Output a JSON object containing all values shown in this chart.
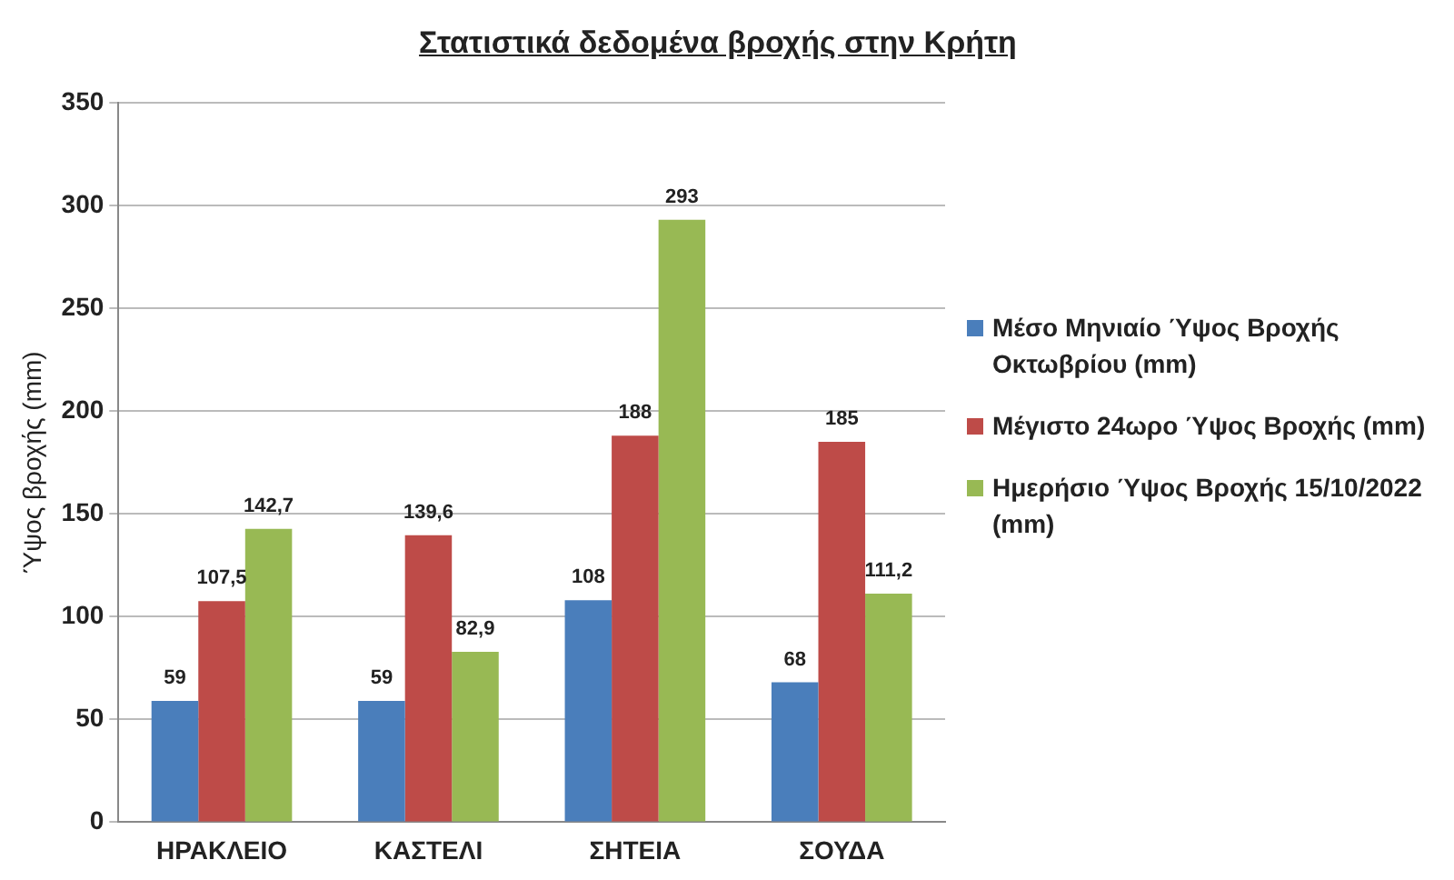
{
  "chart_data": {
    "type": "bar",
    "title": "Στατιστικά δεδομένα βροχής στην Κρήτη",
    "ylabel": "Ύψος βροχής (mm)",
    "categories": [
      "ΗΡΑΚΛΕΙΟ",
      "ΚΑΣΤΕΛΙ",
      "ΣΗΤΕΙΑ",
      "ΣΟΥΔΑ"
    ],
    "series": [
      {
        "name": "Μέσο Μηνιαίο Ύψος Βροχής Οκτωβρίου (mm)",
        "color": "#4a7ebb",
        "values": [
          59,
          59,
          108,
          68
        ],
        "value_labels": [
          "59",
          "59",
          "108",
          "68"
        ]
      },
      {
        "name": "Μέγιστο 24ωρο Ύψος Βροχής (mm)",
        "color": "#be4b48",
        "values": [
          107.5,
          139.6,
          188,
          185
        ],
        "value_labels": [
          "107,5",
          "139,6",
          "188",
          "185"
        ]
      },
      {
        "name": "Ημερήσιο Ύψος Βροχής 15/10/2022 (mm)",
        "color": "#98b954",
        "values": [
          142.7,
          82.9,
          293,
          111.2
        ],
        "value_labels": [
          "142,7",
          "82,9",
          "293",
          "111,2"
        ]
      }
    ],
    "ylim": [
      0,
      350
    ],
    "yticks": [
      0,
      50,
      100,
      150,
      200,
      250,
      300,
      350
    ],
    "grid": "y",
    "legend": "right"
  }
}
